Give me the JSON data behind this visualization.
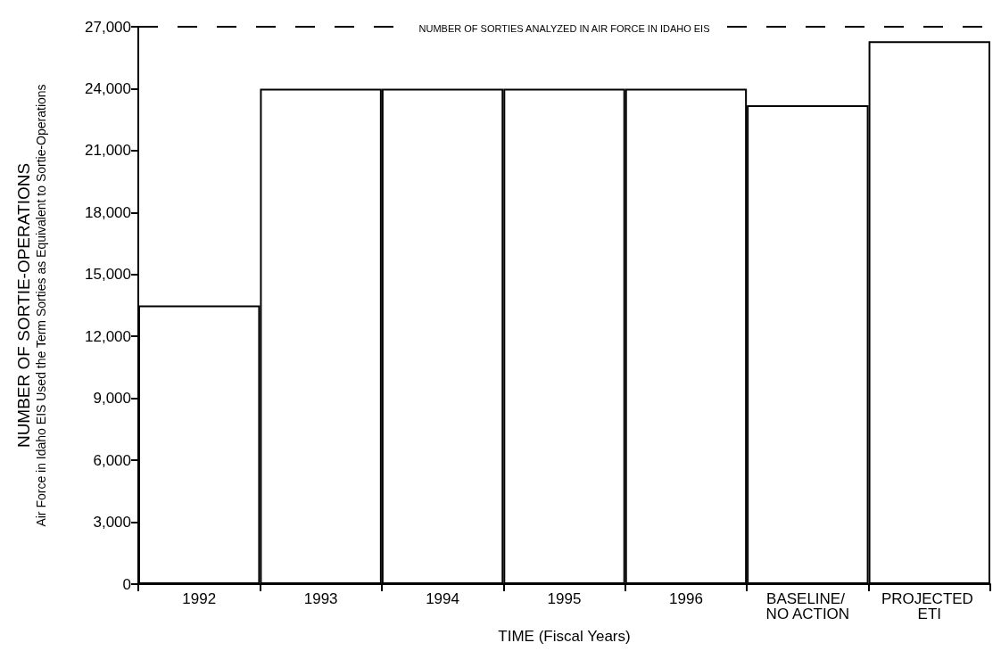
{
  "chart_data": {
    "type": "bar",
    "xlabel": "TIME (Fiscal Years)",
    "ylabel": "NUMBER OF SORTIE-OPERATIONS\nAir Force in Idaho EIS Used the Term Sorties as Equivalent to Sortie-Operations",
    "categories": [
      "1992",
      "1993",
      "1994",
      "1995",
      "1996",
      "BASELINE/ NO ACTION",
      "PROJECTED ETI"
    ],
    "values": [
      13500,
      24000,
      24000,
      24000,
      24000,
      23200,
      26300
    ],
    "colors": [
      "#ffffff",
      "#ffffff",
      "#ffffff",
      "#ffffff",
      "#ffffff",
      "#ffffff",
      "#ffffff"
    ],
    "ylim": [
      0,
      27000
    ],
    "yticks": [
      0,
      {
        "value": 3000,
        "label": "3,000"
      },
      {
        "value": 6000,
        "label": "6,000"
      },
      {
        "value": 9000,
        "label": "9,000"
      },
      {
        "value": 12000,
        "label": "12,000"
      },
      {
        "value": 15000,
        "label": "15,000"
      },
      {
        "value": 18000,
        "label": "18,000"
      },
      {
        "value": 21000,
        "label": "21,000"
      },
      {
        "value": 24000,
        "label": "24,000"
      },
      {
        "value": 27000,
        "label": "27,000"
      }
    ],
    "ref_lines": [
      {
        "axis": "y",
        "value": 27000,
        "label": "NUMBER OF SORTIES ANALYZED IN AIR FORCE IN IDAHO EIS",
        "color": "#000000",
        "line_style": "dashed"
      }
    ],
    "grid": false
  }
}
